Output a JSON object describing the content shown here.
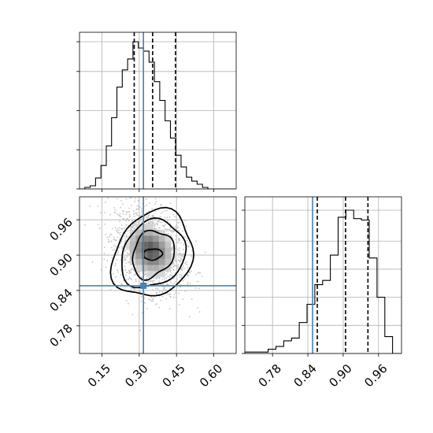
{
  "chart_data": {
    "type": "corner",
    "parameters": [
      {
        "ticks": [
          0.15,
          0.3,
          0.45,
          0.6
        ],
        "tick_labels": [
          "0.15",
          "0.30",
          "0.45",
          "0.60"
        ],
        "range": [
          0.06,
          0.69
        ]
      },
      {
        "ticks": [
          0.78,
          0.84,
          0.9,
          0.96
        ],
        "tick_labels": [
          "0.78",
          "0.84",
          "0.90",
          "0.96"
        ],
        "range": [
          0.733,
          0.999
        ]
      }
    ],
    "truths": [
      0.317,
      0.848
    ],
    "quantiles": [
      [
        0.28,
        0.354,
        0.446
      ],
      [
        0.856,
        0.904,
        0.942
      ]
    ],
    "grid": true,
    "marginal_x": {
      "type": "step-histogram",
      "edges": [
        0.06,
        0.0815,
        0.103,
        0.1245,
        0.146,
        0.1675,
        0.189,
        0.2105,
        0.232,
        0.2535,
        0.275,
        0.2965,
        0.318,
        0.3395,
        0.361,
        0.3825,
        0.404,
        0.4255,
        0.447,
        0.4685,
        0.49,
        0.5115,
        0.533,
        0.5545,
        0.576,
        0.5975,
        0.619,
        0.6405,
        0.662,
        0.6835
      ],
      "counts": [
        0,
        2,
        4,
        14,
        30,
        55,
        91,
        130,
        152,
        166,
        188,
        180,
        176,
        162,
        137,
        113,
        87,
        65,
        43,
        28,
        15,
        10,
        6,
        2,
        0,
        0,
        0,
        0,
        0
      ]
    },
    "marginal_y": {
      "type": "step-histogram",
      "edges": [
        0.733,
        0.7462,
        0.7594,
        0.7726,
        0.7858,
        0.799,
        0.8122,
        0.8254,
        0.8386,
        0.8518,
        0.865,
        0.8782,
        0.8914,
        0.9046,
        0.9178,
        0.931,
        0.9442,
        0.9574,
        0.9706,
        0.9838,
        0.997
      ],
      "counts": [
        1,
        1,
        1,
        3,
        5,
        9,
        11,
        22,
        35,
        49,
        52,
        70,
        97,
        102,
        96,
        95,
        68,
        40,
        12,
        0
      ]
    },
    "joint": {
      "type": "2d-histogram-with-contours",
      "center": [
        0.345,
        0.908
      ],
      "sigma": [
        0.07,
        0.04
      ],
      "contour_levels": [
        "0.5sigma",
        "1sigma",
        "1.5sigma",
        "2sigma"
      ]
    }
  }
}
